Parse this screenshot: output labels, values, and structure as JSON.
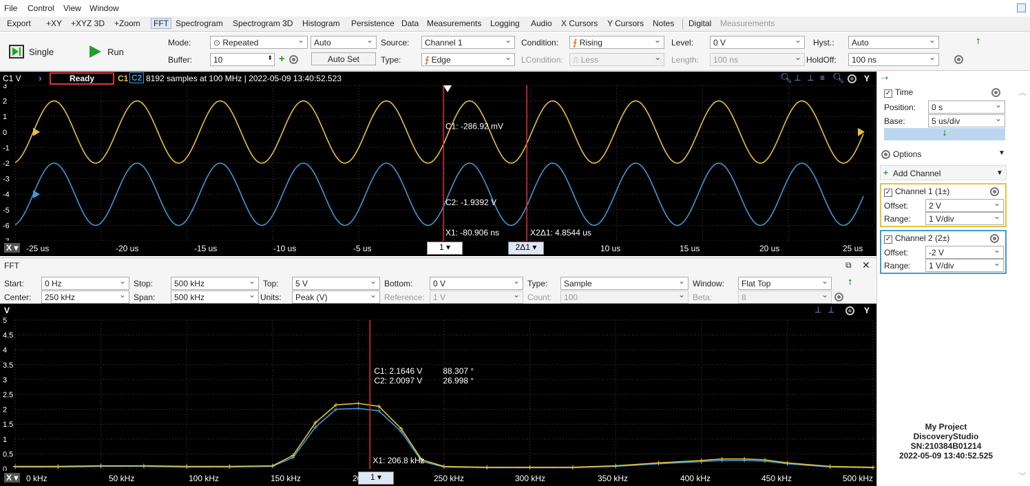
{
  "menu": [
    "File",
    "Control",
    "View",
    "Window"
  ],
  "tabs": [
    {
      "label": "Export",
      "active": false
    },
    {
      "label": "+XY",
      "active": false
    },
    {
      "label": "+XYZ 3D",
      "active": false
    },
    {
      "label": "+Zoom",
      "active": false
    },
    {
      "label": "FFT",
      "active": true
    },
    {
      "label": "Spectrogram",
      "active": false
    },
    {
      "label": "Spectrogram 3D",
      "active": false
    },
    {
      "label": "Histogram",
      "active": false
    },
    {
      "label": "Persistence",
      "active": false
    },
    {
      "label": "Data",
      "active": false
    },
    {
      "label": "Measurements",
      "active": false
    },
    {
      "label": "Logging",
      "active": false
    },
    {
      "label": "Audio",
      "active": false
    },
    {
      "label": "X Cursors",
      "active": false
    },
    {
      "label": "Y Cursors",
      "active": false
    },
    {
      "label": "Notes",
      "active": false
    },
    {
      "label": "Digital",
      "active": false
    },
    {
      "label": "Measurements",
      "active": false,
      "dim": true
    }
  ],
  "toolbar": {
    "single_label": "Single",
    "run_label": "Run",
    "mode_label": "Mode:",
    "mode_value": "Repeated",
    "auto_value": "Auto",
    "buffer_label": "Buffer:",
    "buffer_value": "10",
    "autoset_label": "Auto Set",
    "source_label": "Source:",
    "source_value": "Channel 1",
    "type_label": "Type:",
    "type_value": "Edge",
    "condition_label": "Condition:",
    "condition_value": "Rising",
    "lcondition_label": "LCondition:",
    "lcondition_value": "Less",
    "level_label": "Level:",
    "level_value": "0 V",
    "length_label": "Length:",
    "length_value": "100 ns",
    "hyst_label": "Hyst.:",
    "hyst_value": "Auto",
    "holdoff_label": "HoldOff:",
    "holdoff_value": "100 ns"
  },
  "scope": {
    "y_title": "C1 V",
    "status": "Ready",
    "c1": "C1",
    "c2": "C2",
    "info": "8192 samples at 100 MHz | 2022-05-09 13:40:52.523",
    "y_ticks": [
      "3",
      "2",
      "1",
      "0",
      "-1",
      "-2",
      "-3",
      "-4",
      "-5",
      "-6",
      "-7"
    ],
    "x_ticks": [
      "-25 us",
      "-20 us",
      "-15 us",
      "-10 us",
      "-5 us",
      "10 us",
      "15 us",
      "20 us",
      "25 us"
    ],
    "x_axis": "X",
    "cursor1": "1",
    "cursor2": "2Δ1",
    "c1_readout": "C1: -286.92 mV",
    "c2_readout": "C2: -1.9392 V",
    "x1_readout": "X1: -80.906 ns",
    "x2_readout": "X2Δ1: 4.8544 us",
    "y_axis_btn": "Y"
  },
  "fft": {
    "title": "FFT",
    "start_label": "Start:",
    "start_value": "0 Hz",
    "stop_label": "Stop:",
    "stop_value": "500 kHz",
    "top_label": "Top:",
    "top_value": "5 V",
    "bottom_label": "Bottom:",
    "bottom_value": "0 V",
    "type_label": "Type:",
    "type_value": "Sample",
    "window_label": "Window:",
    "window_value": "Flat Top",
    "center_label": "Center:",
    "center_value": "250 kHz",
    "span_label": "Span:",
    "span_value": "500 kHz",
    "units_label": "Units:",
    "units_value": "Peak (V)",
    "reference_label": "Reference:",
    "reference_value": "1 V",
    "count_label": "Count:",
    "count_value": "100",
    "beta_label": "Beta:",
    "beta_value": "8",
    "y_title": "V",
    "y_ticks": [
      "5",
      "4.5",
      "4",
      "3.5",
      "3",
      "2.5",
      "2",
      "1.5",
      "1",
      "0.5",
      "0"
    ],
    "x_ticks": [
      "0 kHz",
      "50 kHz",
      "100 kHz",
      "150 kHz",
      "200 kHz",
      "250 kHz",
      "300 kHz",
      "350 kHz",
      "400 kHz",
      "450 kHz",
      "500 kHz"
    ],
    "x_axis": "X",
    "cursor1": "1",
    "y_axis_btn": "Y",
    "c1_readout": "C1: 2.1646 V",
    "c1_phase": "88.307 °",
    "c2_readout": "C2: 2.0097 V",
    "c2_phase": "26.998 °",
    "x1_readout": "X1: 206.8 kHz"
  },
  "panel": {
    "time_label": "Time",
    "position_label": "Position:",
    "position_value": "0 s",
    "base_label": "Base:",
    "base_value": "5 us/div",
    "options_label": "Options",
    "add_channel_label": "Add Channel",
    "ch1_label": "Channel 1 (1±)",
    "ch1_offset_label": "Offset:",
    "ch1_offset": "2 V",
    "ch1_range_label": "Range:",
    "ch1_range": "1 V/div",
    "ch2_label": "Channel 2 (2±)",
    "ch2_offset_label": "Offset:",
    "ch2_offset": "-2 V",
    "ch2_range_label": "Range:",
    "ch2_range": "1 V/div",
    "project_line1": "My Project",
    "project_line2": "DiscoveryStudio",
    "project_line3": "SN:210384B01214",
    "project_line4": "2022-05-09 13:40:52.525"
  },
  "colors": {
    "ch1": "#e9c236",
    "ch2": "#3c9ad6",
    "cursor": "#e53030",
    "accent": "#2a9a2a"
  },
  "chart_data": [
    {
      "type": "line",
      "xlabel": "",
      "ylabel": "C1 V",
      "xlim": [
        -25,
        25
      ],
      "ylim": [
        -7,
        3
      ],
      "x_unit": "us",
      "series": [
        {
          "name": "C1",
          "waveform": "sine",
          "frequency_khz": 206.8,
          "amplitude_v": 2.0,
          "offset_v": 0.0
        },
        {
          "name": "C2",
          "waveform": "sine",
          "frequency_khz": 206.8,
          "amplitude_v": 2.0,
          "offset_v": -4.0
        }
      ]
    },
    {
      "type": "line",
      "xlabel": "",
      "ylabel": "V",
      "xlim": [
        0,
        500
      ],
      "ylim": [
        0,
        5
      ],
      "x_unit": "kHz",
      "x": [
        0,
        25,
        50,
        75,
        100,
        125,
        150,
        162,
        175,
        187,
        200,
        212,
        225,
        237,
        250,
        275,
        300,
        325,
        350,
        375,
        400,
        412,
        425,
        437,
        450,
        475,
        500
      ],
      "series": [
        {
          "name": "C1",
          "values": [
            0.08,
            0.08,
            0.1,
            0.1,
            0.08,
            0.08,
            0.1,
            0.45,
            1.55,
            2.15,
            2.2,
            2.1,
            1.35,
            0.3,
            0.08,
            0.05,
            0.05,
            0.05,
            0.1,
            0.2,
            0.28,
            0.33,
            0.33,
            0.3,
            0.2,
            0.08,
            0.05
          ]
        },
        {
          "name": "C2",
          "values": [
            0.06,
            0.06,
            0.08,
            0.08,
            0.06,
            0.06,
            0.08,
            0.38,
            1.4,
            2.0,
            2.03,
            1.95,
            1.25,
            0.25,
            0.06,
            0.04,
            0.04,
            0.04,
            0.08,
            0.17,
            0.24,
            0.28,
            0.28,
            0.26,
            0.17,
            0.06,
            0.04
          ]
        }
      ]
    }
  ]
}
